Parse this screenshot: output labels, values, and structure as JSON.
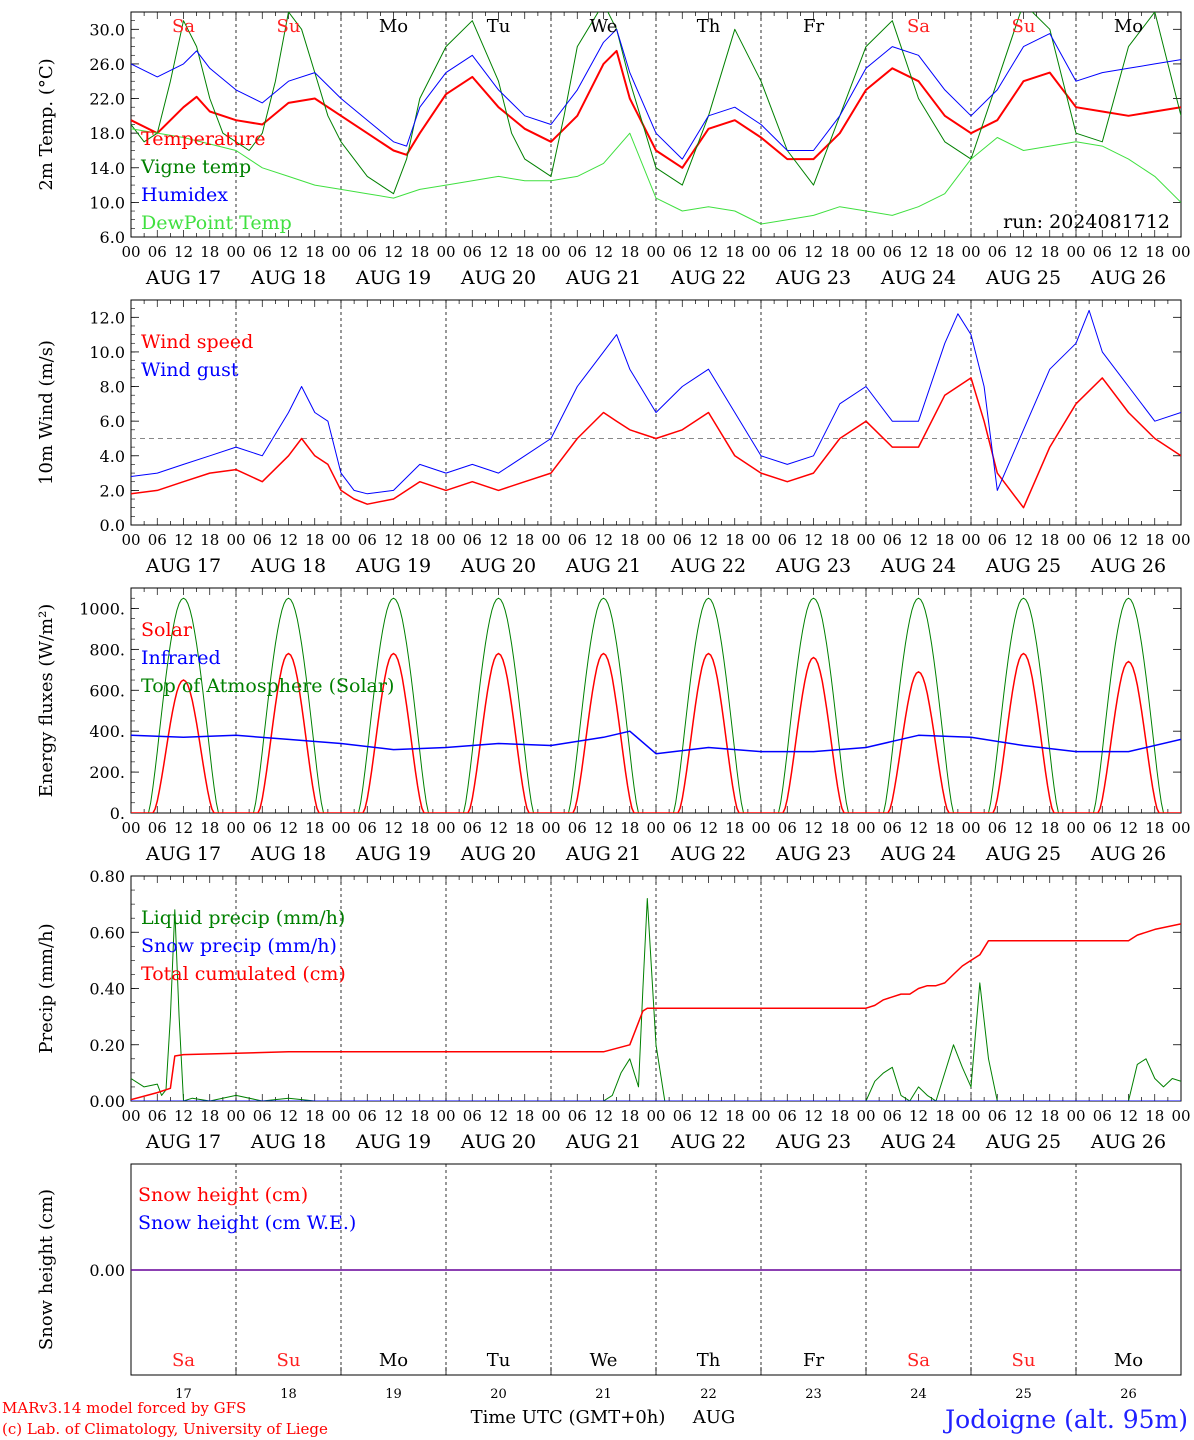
{
  "colors": {
    "weekend": "#ff2020",
    "weekday": "#000000"
  },
  "days": {
    "labels": [
      "Sa",
      "Su",
      "Mo",
      "Tu",
      "We",
      "Th",
      "Fr",
      "Sa",
      "Su",
      "Mo"
    ],
    "weekend": [
      true,
      true,
      false,
      false,
      false,
      false,
      false,
      true,
      true,
      false
    ],
    "dates": [
      "AUG 17",
      "AUG 18",
      "AUG 19",
      "AUG 20",
      "AUG 21",
      "AUG 22",
      "AUG 23",
      "AUG 24",
      "AUG 25",
      "AUG 26"
    ],
    "day_numbers": [
      "17",
      "18",
      "19",
      "20",
      "21",
      "22",
      "23",
      "24",
      "25",
      "26"
    ],
    "hour_ticks": [
      "00",
      "06",
      "12",
      "18"
    ],
    "end_tick": "00"
  },
  "footer": {
    "model": "MARv3.14 model forced by GFS",
    "copyright": "(c) Lab. of Climatology, University of Liege",
    "xlabel": "Time UTC (GMT+0h)",
    "month": "AUG",
    "station": "Jodoigne (alt. 95m)"
  },
  "chart_data": [
    {
      "type": "line",
      "ylabel": "2m Temp. (°C)",
      "ylim": [
        6,
        32
      ],
      "yticks": [
        "6.0",
        "10.0",
        "14.0",
        "18.0",
        "22.0",
        "26.0",
        "30.0"
      ],
      "run_label": "run: 2024081712",
      "series": [
        {
          "name": "Temperature",
          "color": "#ff0000",
          "width": 2,
          "x": [
            0,
            6,
            12,
            15,
            18,
            24,
            30,
            36,
            42,
            48,
            54,
            60,
            63,
            66,
            72,
            78,
            84,
            90,
            96,
            102,
            108,
            111,
            114,
            120,
            126,
            132,
            138,
            144,
            150,
            156,
            162,
            168,
            174,
            180,
            186,
            192,
            198,
            204,
            210,
            216,
            222,
            228,
            234,
            240
          ],
          "y": [
            19.5,
            18,
            21,
            22.2,
            20.5,
            19.5,
            19,
            21.5,
            22,
            20,
            18,
            16,
            15.5,
            18,
            22.5,
            24.5,
            21,
            18.5,
            17,
            20,
            26,
            27.5,
            22,
            16,
            14,
            18.5,
            19.5,
            17.5,
            15,
            15,
            18,
            23,
            25.5,
            24,
            20,
            18,
            19.5,
            24,
            25,
            21,
            20.5,
            20,
            20.5,
            21
          ]
        },
        {
          "name": "Vigne temp",
          "color": "#008000",
          "width": 1,
          "x": [
            0,
            3,
            6,
            9,
            12,
            15,
            18,
            21,
            24,
            27,
            30,
            33,
            36,
            39,
            42,
            45,
            48,
            51,
            54,
            57,
            60,
            63,
            66,
            72,
            78,
            84,
            87,
            90,
            96,
            99,
            102,
            108,
            111,
            114,
            120,
            126,
            132,
            138,
            144,
            150,
            156,
            162,
            168,
            174,
            180,
            186,
            192,
            198,
            204,
            210,
            216,
            222,
            228,
            234,
            240
          ],
          "y": [
            19,
            17,
            18,
            24,
            31,
            28,
            22,
            18,
            17,
            16,
            18,
            24,
            32,
            30,
            25,
            20,
            17,
            15,
            13,
            12,
            11,
            15,
            22,
            28,
            31,
            24,
            18,
            15,
            13,
            20,
            28,
            33,
            30,
            24,
            14,
            12,
            20,
            30,
            24,
            16,
            12,
            20,
            28,
            31,
            22,
            17,
            15,
            24,
            33,
            30,
            18,
            17,
            28,
            32,
            20
          ]
        },
        {
          "name": "Humidex",
          "color": "#0000ff",
          "width": 1,
          "x": [
            0,
            6,
            12,
            15,
            18,
            24,
            30,
            36,
            42,
            48,
            54,
            60,
            63,
            66,
            72,
            78,
            84,
            90,
            96,
            102,
            108,
            111,
            114,
            120,
            126,
            132,
            138,
            144,
            150,
            156,
            162,
            168,
            174,
            180,
            186,
            192,
            198,
            204,
            210,
            216,
            222,
            228,
            234,
            240
          ],
          "y": [
            26,
            24.5,
            26,
            27.5,
            25.5,
            23,
            21.5,
            24,
            25,
            22,
            19.5,
            17,
            16.5,
            21,
            25,
            27,
            23,
            20,
            19,
            23,
            28.5,
            30,
            25,
            18,
            15,
            20,
            21,
            19,
            16,
            16,
            20,
            25.5,
            28,
            27,
            23,
            20,
            23,
            28,
            29.5,
            24,
            25,
            25.5,
            26,
            26.5
          ]
        },
        {
          "name": "DewPoint Temp",
          "color": "#40e040",
          "width": 1,
          "x": [
            0,
            12,
            24,
            30,
            36,
            42,
            48,
            54,
            60,
            66,
            72,
            78,
            84,
            90,
            96,
            102,
            108,
            114,
            120,
            126,
            132,
            138,
            144,
            150,
            156,
            162,
            168,
            174,
            180,
            186,
            192,
            198,
            204,
            210,
            216,
            222,
            228,
            234,
            240
          ],
          "y": [
            18.5,
            17.5,
            16,
            14,
            13,
            12,
            11.5,
            11,
            10.5,
            11.5,
            12,
            12.5,
            13,
            12.5,
            12.5,
            13,
            14.5,
            18,
            10.5,
            9,
            9.5,
            9,
            7.5,
            8,
            8.5,
            9.5,
            9,
            8.5,
            9.5,
            11,
            15,
            17.5,
            16,
            16.5,
            17,
            16.5,
            15,
            13,
            10
          ]
        }
      ],
      "legend": [
        "Temperature",
        "Vigne temp",
        "Humidex",
        "DewPoint Temp"
      ],
      "legend_colors": [
        "#ff0000",
        "#008000",
        "#0000ff",
        "#40e040"
      ]
    },
    {
      "type": "line",
      "ylabel": "10m Wind (m/s)",
      "ylim": [
        0,
        13
      ],
      "yticks": [
        "0.0",
        "2.0",
        "4.0",
        "6.0",
        "8.0",
        "10.0",
        "12.0"
      ],
      "reference_line": 5,
      "series": [
        {
          "name": "Wind speed",
          "color": "#ff0000",
          "width": 1.5,
          "x": [
            0,
            6,
            12,
            18,
            24,
            30,
            36,
            39,
            42,
            45,
            48,
            51,
            54,
            60,
            66,
            72,
            78,
            84,
            90,
            96,
            102,
            108,
            111,
            114,
            120,
            126,
            132,
            138,
            144,
            150,
            156,
            162,
            168,
            174,
            180,
            186,
            192,
            195,
            198,
            204,
            210,
            216,
            222,
            228,
            234,
            240
          ],
          "y": [
            1.8,
            2,
            2.5,
            3,
            3.2,
            2.5,
            4,
            5,
            4,
            3.5,
            2,
            1.5,
            1.2,
            1.5,
            2.5,
            2,
            2.5,
            2,
            2.5,
            3,
            5,
            6.5,
            6,
            5.5,
            5,
            5.5,
            6.5,
            4,
            3,
            2.5,
            3,
            5,
            6,
            4.5,
            4.5,
            7.5,
            8.5,
            6,
            3,
            1,
            4.5,
            7,
            8.5,
            6.5,
            5,
            4
          ]
        },
        {
          "name": "Wind gust",
          "color": "#0000ff",
          "width": 1,
          "x": [
            0,
            6,
            12,
            18,
            24,
            30,
            36,
            39,
            42,
            45,
            48,
            51,
            54,
            60,
            66,
            72,
            78,
            84,
            90,
            96,
            102,
            108,
            111,
            114,
            120,
            126,
            132,
            138,
            144,
            150,
            156,
            162,
            168,
            174,
            180,
            186,
            189,
            192,
            195,
            198,
            204,
            210,
            216,
            219,
            222,
            228,
            234,
            240
          ],
          "y": [
            2.8,
            3,
            3.5,
            4,
            4.5,
            4,
            6.5,
            8,
            6.5,
            6,
            3,
            2,
            1.8,
            2,
            3.5,
            3,
            3.5,
            3,
            4,
            5,
            8,
            10,
            11,
            9,
            6.5,
            8,
            9,
            6.5,
            4,
            3.5,
            4,
            7,
            8,
            6,
            6,
            10.5,
            12.2,
            11,
            8,
            2,
            5.5,
            9,
            10.5,
            12.4,
            10,
            8,
            6,
            6.5
          ]
        }
      ],
      "legend": [
        "Wind speed",
        "Wind gust"
      ],
      "legend_colors": [
        "#ff0000",
        "#0000ff"
      ]
    },
    {
      "type": "line",
      "ylabel": "Energy fluxes (W/m²)",
      "ylim": [
        0,
        1100
      ],
      "yticks": [
        "0.",
        "200.",
        "400.",
        "600.",
        "800.",
        "1000."
      ],
      "series": [
        {
          "name": "Solar",
          "color": "#ff0000",
          "width": 1.5,
          "peaks": [
            650,
            780,
            780,
            780,
            780,
            780,
            760,
            690,
            780,
            740
          ]
        },
        {
          "name": "Infrared",
          "color": "#0000ff",
          "width": 1.5,
          "x": [
            0,
            12,
            24,
            36,
            48,
            60,
            72,
            84,
            96,
            108,
            114,
            120,
            132,
            144,
            156,
            168,
            180,
            192,
            204,
            216,
            228,
            240
          ],
          "y": [
            380,
            370,
            380,
            360,
            340,
            310,
            320,
            340,
            330,
            370,
            400,
            290,
            320,
            300,
            300,
            320,
            380,
            370,
            330,
            300,
            300,
            360
          ]
        },
        {
          "name": "Top of Atmosphere (Solar)",
          "color": "#008000",
          "width": 1,
          "peak": 1050
        }
      ],
      "legend": [
        "Solar",
        "Infrared",
        "Top of Atmosphere (Solar)"
      ],
      "legend_colors": [
        "#ff0000",
        "#0000ff",
        "#008000"
      ]
    },
    {
      "type": "line",
      "ylabel": "Precip (mm/h)",
      "ylim": [
        0,
        0.8
      ],
      "yticks": [
        "0.00",
        "0.20",
        "0.40",
        "0.60",
        "0.80"
      ],
      "series": [
        {
          "name": "Liquid precip (mm/h)",
          "color": "#008000",
          "width": 1,
          "x": [
            0,
            3,
            6,
            7,
            8,
            9,
            10,
            11,
            12,
            14,
            18,
            24,
            30,
            36,
            42,
            48,
            108,
            110,
            112,
            114,
            116,
            117,
            118,
            120,
            122,
            124,
            150,
            156,
            162,
            168,
            170,
            172,
            174,
            176,
            178,
            180,
            182,
            184,
            186,
            188,
            190,
            192,
            194,
            196,
            198,
            204,
            206,
            208,
            210,
            212,
            214,
            216,
            228,
            230,
            232,
            234,
            236,
            238,
            240
          ],
          "y": [
            0.08,
            0.05,
            0.06,
            0.02,
            0.04,
            0.3,
            0.68,
            0.3,
            0,
            0.01,
            0,
            0.02,
            0,
            0.01,
            0,
            0,
            0,
            0.02,
            0.1,
            0.15,
            0.05,
            0.4,
            0.72,
            0.2,
            0,
            0,
            0,
            0,
            0,
            0,
            0.07,
            0.1,
            0.12,
            0.02,
            0,
            0.05,
            0.02,
            0,
            0.1,
            0.2,
            0.12,
            0.05,
            0.42,
            0.15,
            0,
            0,
            0,
            0,
            0,
            0,
            0,
            0,
            0,
            0.13,
            0.15,
            0.08,
            0.05,
            0.08,
            0.07
          ]
        },
        {
          "name": "Snow precip (mm/h)",
          "color": "#0000ff",
          "width": 1,
          "x": [
            0,
            240
          ],
          "y": [
            0,
            0
          ]
        },
        {
          "name": "Total cumulated (cm)",
          "color": "#ff0000",
          "width": 1.5,
          "x": [
            0,
            6,
            9,
            10,
            12,
            24,
            36,
            48,
            60,
            72,
            84,
            96,
            108,
            114,
            117,
            118,
            120,
            132,
            144,
            156,
            168,
            170,
            172,
            174,
            176,
            178,
            180,
            182,
            184,
            186,
            188,
            190,
            192,
            194,
            196,
            198,
            204,
            216,
            228,
            230,
            232,
            234,
            240
          ],
          "y": [
            0.005,
            0.03,
            0.045,
            0.16,
            0.165,
            0.17,
            0.175,
            0.175,
            0.175,
            0.175,
            0.175,
            0.175,
            0.175,
            0.2,
            0.32,
            0.33,
            0.33,
            0.33,
            0.33,
            0.33,
            0.33,
            0.34,
            0.36,
            0.37,
            0.38,
            0.38,
            0.4,
            0.41,
            0.41,
            0.42,
            0.45,
            0.48,
            0.5,
            0.52,
            0.57,
            0.57,
            0.57,
            0.57,
            0.57,
            0.59,
            0.6,
            0.61,
            0.63
          ]
        }
      ],
      "legend": [
        "Liquid precip (mm/h)",
        "Snow precip (mm/h)",
        "Total cumulated (cm)"
      ],
      "legend_colors": [
        "#008000",
        "#0000ff",
        "#ff0000"
      ]
    },
    {
      "type": "line",
      "ylabel": "Snow height (cm)",
      "yticks": [
        "0.00"
      ],
      "series": [
        {
          "name": "Snow height (cm)",
          "color": "#ff0000",
          "x": [
            0,
            240
          ],
          "y": [
            0,
            0
          ]
        },
        {
          "name": "Snow height (cm W.E.)",
          "color": "#0000ff",
          "x": [
            0,
            240
          ],
          "y": [
            0,
            0
          ]
        }
      ],
      "legend": [
        "Snow height (cm)",
        "Snow height (cm W.E.)"
      ],
      "legend_colors": [
        "#ff0000",
        "#0000ff"
      ]
    }
  ]
}
